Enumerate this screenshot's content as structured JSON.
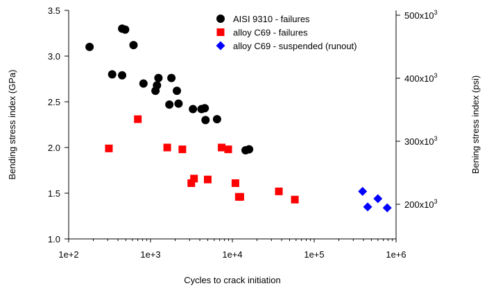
{
  "chart_data": {
    "type": "scatter",
    "xlabel": "Cycles to crack initiation",
    "ylabel": "Bending stress index (GPa)",
    "y2label": "Bening stress index (psi)",
    "xscale": "log",
    "xlim": [
      100,
      1000000
    ],
    "ylim": [
      1.0,
      3.5
    ],
    "x_ticks": [
      100,
      1000,
      10000,
      100000,
      1000000
    ],
    "x_tick_labels": [
      "1e+2",
      "1e+3",
      "1e+4",
      "1e+5",
      "1e+6"
    ],
    "y_ticks": [
      1.0,
      1.5,
      2.0,
      2.5,
      3.0,
      3.5
    ],
    "y_tick_labels": [
      "1.0",
      "1.5",
      "2.0",
      "2.5",
      "3.0",
      "3.5"
    ],
    "y2_ticks": [
      200000,
      300000,
      400000,
      500000
    ],
    "y2_tick_labels": [
      {
        "base": "200x10",
        "exp": "3"
      },
      {
        "base": "300x10",
        "exp": "3"
      },
      {
        "base": "400x10",
        "exp": "3"
      },
      {
        "base": "500x10",
        "exp": "3"
      }
    ],
    "grid": false,
    "legend_position": "top-right",
    "series": [
      {
        "name": "AISI 9310 - failures",
        "marker": "circle",
        "color": "#000000",
        "points": [
          [
            180,
            3.1
          ],
          [
            450,
            3.3
          ],
          [
            490,
            3.29
          ],
          [
            620,
            3.12
          ],
          [
            340,
            2.8
          ],
          [
            450,
            2.79
          ],
          [
            820,
            2.7
          ],
          [
            1150,
            2.62
          ],
          [
            1200,
            2.68
          ],
          [
            1250,
            2.76
          ],
          [
            1800,
            2.76
          ],
          [
            2100,
            2.62
          ],
          [
            1700,
            2.47
          ],
          [
            2200,
            2.48
          ],
          [
            3300,
            2.42
          ],
          [
            4200,
            2.42
          ],
          [
            4600,
            2.43
          ],
          [
            4700,
            2.3
          ],
          [
            6500,
            2.31
          ],
          [
            14500,
            1.97
          ],
          [
            16000,
            1.98
          ]
        ]
      },
      {
        "name": "alloy C69 - failures",
        "marker": "square",
        "color": "#ff0000",
        "points": [
          [
            310,
            1.99
          ],
          [
            700,
            2.31
          ],
          [
            1600,
            2.0
          ],
          [
            2450,
            1.98
          ],
          [
            7400,
            2.0
          ],
          [
            8900,
            1.98
          ],
          [
            3150,
            1.61
          ],
          [
            3400,
            1.66
          ],
          [
            5000,
            1.65
          ],
          [
            10900,
            1.61
          ],
          [
            12000,
            1.46
          ],
          [
            12500,
            1.46
          ],
          [
            37000,
            1.52
          ],
          [
            58000,
            1.43
          ]
        ]
      },
      {
        "name": "alloy C69 - suspended (runout)",
        "marker": "diamond",
        "color": "#0000ff",
        "points": [
          [
            390000,
            1.52
          ],
          [
            450000,
            1.35
          ],
          [
            600000,
            1.44
          ],
          [
            780000,
            1.34
          ]
        ]
      }
    ]
  }
}
